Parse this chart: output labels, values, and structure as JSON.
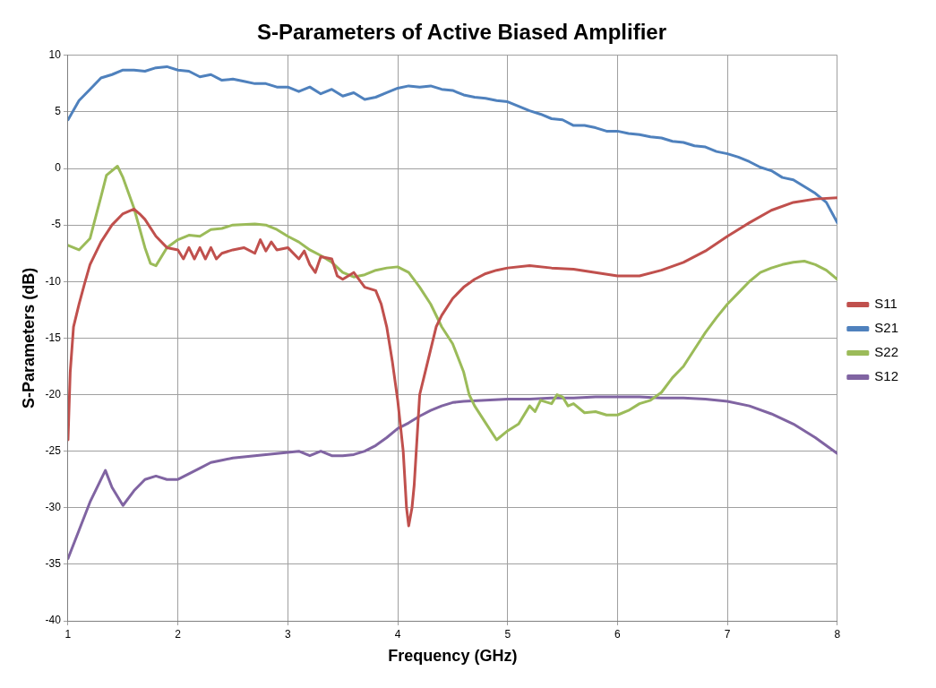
{
  "chart_data": {
    "type": "line",
    "title": "S-Parameters of Active Biased Amplifier",
    "xlabel": "Frequency (GHz)",
    "ylabel": "S-Parameters (dB)",
    "xlim": [
      1,
      8
    ],
    "xticks": [
      1,
      2,
      3,
      4,
      5,
      6,
      7,
      8
    ],
    "ylim": [
      -40,
      10
    ],
    "yticks": [
      -40,
      -35,
      -30,
      -25,
      -20,
      -15,
      -10,
      -5,
      0,
      5,
      10
    ],
    "grid": true,
    "legend": "right",
    "marker": "none",
    "line_style": "solid",
    "series": [
      {
        "name": "S11",
        "color": "#c0504d",
        "x": [
          1.0,
          1.02,
          1.05,
          1.1,
          1.15,
          1.2,
          1.3,
          1.4,
          1.5,
          1.6,
          1.65,
          1.7,
          1.8,
          1.9,
          2.0,
          2.05,
          2.1,
          2.15,
          2.2,
          2.25,
          2.3,
          2.35,
          2.4,
          2.5,
          2.6,
          2.7,
          2.75,
          2.8,
          2.85,
          2.9,
          3.0,
          3.1,
          3.15,
          3.2,
          3.25,
          3.3,
          3.4,
          3.45,
          3.5,
          3.6,
          3.7,
          3.8,
          3.85,
          3.9,
          3.95,
          4.0,
          4.05,
          4.08,
          4.1,
          4.13,
          4.15,
          4.2,
          4.25,
          4.3,
          4.35,
          4.4,
          4.5,
          4.6,
          4.7,
          4.8,
          4.9,
          5.0,
          5.2,
          5.4,
          5.6,
          5.8,
          6.0,
          6.2,
          6.4,
          6.6,
          6.8,
          7.0,
          7.2,
          7.4,
          7.6,
          7.8,
          8.0
        ],
        "values": [
          -24,
          -18,
          -14,
          -12,
          -10.2,
          -8.5,
          -6.5,
          -5,
          -4,
          -3.6,
          -4,
          -4.5,
          -6,
          -7,
          -7.2,
          -8,
          -7,
          -8,
          -7,
          -8,
          -7,
          -8,
          -7.5,
          -7.2,
          -7,
          -7.5,
          -6.3,
          -7.3,
          -6.5,
          -7.2,
          -7,
          -8,
          -7.3,
          -8.5,
          -9.2,
          -7.8,
          -8,
          -9.5,
          -9.8,
          -9.2,
          -10.5,
          -10.8,
          -12,
          -14,
          -17,
          -20.5,
          -25,
          -30,
          -31.6,
          -30,
          -28,
          -20,
          -18,
          -16,
          -14,
          -13,
          -11.5,
          -10.5,
          -9.8,
          -9.3,
          -9,
          -8.8,
          -8.6,
          -8.8,
          -8.9,
          -9.2,
          -9.5,
          -9.5,
          -9,
          -8.3,
          -7.3,
          -6,
          -4.8,
          -3.7,
          -3,
          -2.7,
          -2.6
        ]
      },
      {
        "name": "S21",
        "color": "#4f81bd",
        "x": [
          1.0,
          1.1,
          1.2,
          1.3,
          1.4,
          1.5,
          1.6,
          1.7,
          1.8,
          1.9,
          2.0,
          2.1,
          2.2,
          2.3,
          2.4,
          2.5,
          2.6,
          2.7,
          2.8,
          2.9,
          3.0,
          3.1,
          3.2,
          3.3,
          3.4,
          3.5,
          3.6,
          3.7,
          3.8,
          3.9,
          4.0,
          4.1,
          4.2,
          4.3,
          4.4,
          4.5,
          4.6,
          4.7,
          4.8,
          4.9,
          5.0,
          5.1,
          5.2,
          5.3,
          5.4,
          5.5,
          5.6,
          5.7,
          5.8,
          5.9,
          6.0,
          6.1,
          6.2,
          6.3,
          6.4,
          6.5,
          6.6,
          6.7,
          6.8,
          6.9,
          7.0,
          7.1,
          7.2,
          7.3,
          7.4,
          7.5,
          7.6,
          7.7,
          7.8,
          7.9,
          8.0
        ],
        "values": [
          4.3,
          6,
          7,
          8,
          8.3,
          8.7,
          8.7,
          8.6,
          8.9,
          9,
          8.7,
          8.6,
          8.1,
          8.3,
          7.8,
          7.9,
          7.7,
          7.5,
          7.5,
          7.2,
          7.2,
          6.8,
          7.2,
          6.6,
          7,
          6.4,
          6.7,
          6.1,
          6.3,
          6.7,
          7.1,
          7.3,
          7.2,
          7.3,
          7,
          6.9,
          6.5,
          6.3,
          6.2,
          6,
          5.9,
          5.5,
          5.1,
          4.8,
          4.4,
          4.3,
          3.8,
          3.8,
          3.6,
          3.3,
          3.3,
          3.1,
          3,
          2.8,
          2.7,
          2.4,
          2.3,
          2,
          1.9,
          1.5,
          1.3,
          1,
          0.6,
          0.1,
          -0.2,
          -0.8,
          -1,
          -1.6,
          -2.2,
          -3,
          -4.8
        ]
      },
      {
        "name": "S22",
        "color": "#9bbb59",
        "x": [
          1.0,
          1.1,
          1.2,
          1.3,
          1.35,
          1.45,
          1.5,
          1.6,
          1.7,
          1.75,
          1.8,
          1.9,
          2.0,
          2.1,
          2.2,
          2.3,
          2.4,
          2.5,
          2.7,
          2.8,
          2.9,
          3.0,
          3.1,
          3.2,
          3.3,
          3.4,
          3.5,
          3.6,
          3.7,
          3.8,
          3.9,
          4.0,
          4.1,
          4.2,
          4.3,
          4.4,
          4.5,
          4.6,
          4.65,
          4.7,
          4.8,
          4.9,
          5.0,
          5.1,
          5.2,
          5.25,
          5.3,
          5.4,
          5.45,
          5.5,
          5.55,
          5.6,
          5.7,
          5.8,
          5.9,
          6.0,
          6.1,
          6.2,
          6.3,
          6.4,
          6.5,
          6.6,
          6.7,
          6.8,
          6.9,
          7.0,
          7.1,
          7.2,
          7.3,
          7.4,
          7.5,
          7.6,
          7.7,
          7.8,
          7.9,
          8.0
        ],
        "values": [
          -6.8,
          -7.2,
          -6.2,
          -2.5,
          -0.6,
          0.2,
          -0.8,
          -3.5,
          -7,
          -8.4,
          -8.6,
          -7,
          -6.3,
          -5.9,
          -6,
          -5.4,
          -5.3,
          -5,
          -4.9,
          -5,
          -5.4,
          -6,
          -6.5,
          -7.2,
          -7.7,
          -8.3,
          -9.2,
          -9.6,
          -9.4,
          -9,
          -8.8,
          -8.7,
          -9.2,
          -10.5,
          -12,
          -14,
          -15.5,
          -18,
          -20,
          -21,
          -22.5,
          -24,
          -23.2,
          -22.6,
          -21,
          -21.5,
          -20.5,
          -20.8,
          -20,
          -20.2,
          -21,
          -20.8,
          -21.6,
          -21.5,
          -21.8,
          -21.8,
          -21.4,
          -20.8,
          -20.5,
          -19.8,
          -18.5,
          -17.5,
          -16,
          -14.5,
          -13.2,
          -12,
          -11,
          -10,
          -9.2,
          -8.8,
          -8.5,
          -8.3,
          -8.2,
          -8.5,
          -9,
          -9.8
        ]
      },
      {
        "name": "S12",
        "color": "#8064a2",
        "x": [
          1.0,
          1.1,
          1.2,
          1.3,
          1.34,
          1.4,
          1.5,
          1.6,
          1.7,
          1.8,
          1.9,
          2.0,
          2.1,
          2.2,
          2.3,
          2.4,
          2.5,
          2.6,
          2.7,
          2.8,
          2.9,
          3.0,
          3.1,
          3.2,
          3.3,
          3.4,
          3.5,
          3.6,
          3.7,
          3.8,
          3.9,
          4.0,
          4.1,
          4.2,
          4.3,
          4.4,
          4.5,
          4.6,
          4.8,
          5.0,
          5.2,
          5.4,
          5.6,
          5.8,
          6.0,
          6.2,
          6.4,
          6.6,
          6.8,
          7.0,
          7.2,
          7.4,
          7.6,
          7.8,
          8.0
        ],
        "values": [
          -34.5,
          -32,
          -29.5,
          -27.5,
          -26.7,
          -28.2,
          -29.8,
          -28.5,
          -27.5,
          -27.2,
          -27.5,
          -27.5,
          -27,
          -26.5,
          -26,
          -25.8,
          -25.6,
          -25.5,
          -25.4,
          -25.3,
          -25.2,
          -25.1,
          -25,
          -25.4,
          -25,
          -25.4,
          -25.4,
          -25.3,
          -25,
          -24.5,
          -23.8,
          -23,
          -22.5,
          -21.9,
          -21.4,
          -21,
          -20.7,
          -20.6,
          -20.5,
          -20.4,
          -20.4,
          -20.3,
          -20.3,
          -20.2,
          -20.2,
          -20.2,
          -20.3,
          -20.3,
          -20.4,
          -20.6,
          -21,
          -21.7,
          -22.6,
          -23.8,
          -25.2
        ]
      }
    ]
  }
}
